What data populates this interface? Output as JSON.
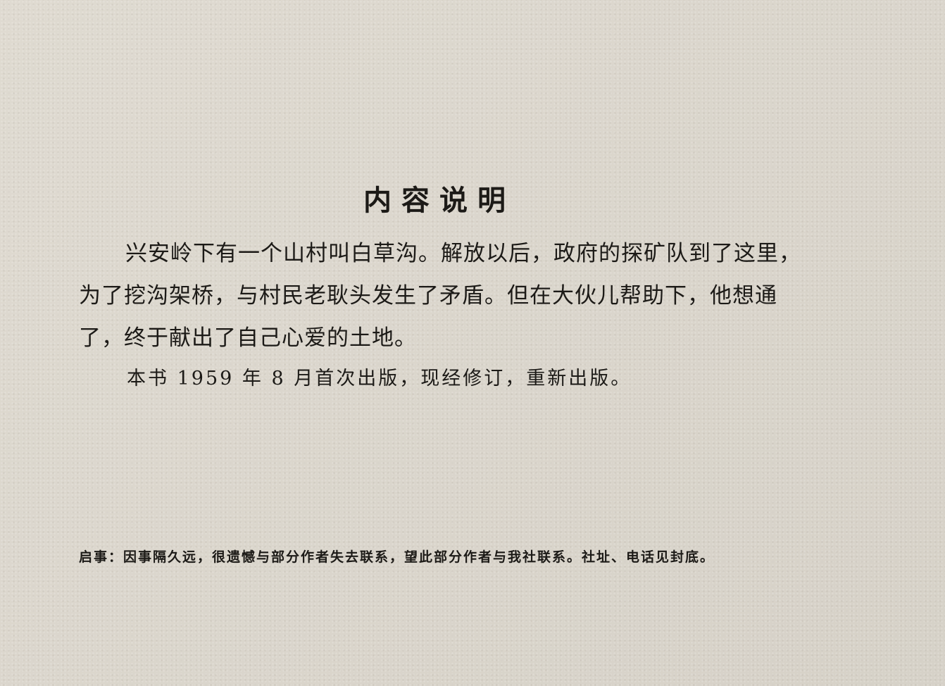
{
  "title": "内容说明",
  "paragraphs": [
    "兴安岭下有一个山村叫白草沟。解放以后，政府的探矿队到了这里，为了挖沟架桥，与村民老耿头发生了矛盾。但在大伙儿帮助下，他想通了，终于献出了自己心爱的土地。",
    "本书 1959 年 8 月首次出版，现经修订，重新出版。"
  ],
  "notice": "启事：因事隔久远，很遗憾与部分作者失去联系，望此部分作者与我社联系。社址、电话见封底。"
}
